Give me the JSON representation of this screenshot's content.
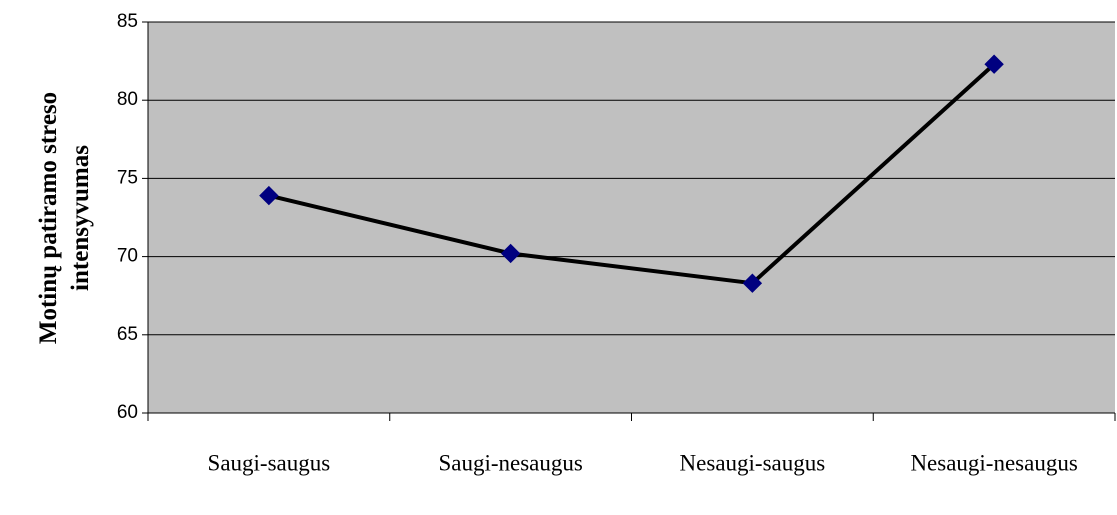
{
  "chart_data": {
    "type": "line",
    "y_label": [
      "Motinų patiramo streso",
      "intensyvumas"
    ],
    "categories": [
      "Saugi-saugus",
      "Saugi-nesaugus",
      "Nesaugi-saugus",
      "Nesaugi-nesaugus"
    ],
    "series": [
      {
        "color": "#000000",
        "marker_color": "#000080",
        "values": [
          73.9,
          70.2,
          68.3,
          82.3
        ]
      }
    ],
    "ylim": [
      60,
      85
    ],
    "yticks": [
      60,
      65,
      70,
      75,
      80,
      85
    ],
    "grid": true,
    "background": "#c0c0c0"
  }
}
